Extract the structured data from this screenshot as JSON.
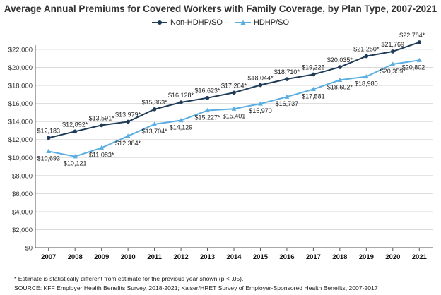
{
  "chart_data": {
    "type": "line",
    "title": "Average Annual Premiums for Covered Workers with Family Coverage, by Plan Type, 2007-2021",
    "x": [
      "2007",
      "2008",
      "2009",
      "2010",
      "2011",
      "2012",
      "2013",
      "2014",
      "2015",
      "2016",
      "2017",
      "2018",
      "2019",
      "2020",
      "2021"
    ],
    "ylim": [
      0,
      22000
    ],
    "ytick_step": 2000,
    "ytick_labels": [
      "$0",
      "$2,000",
      "$4,000",
      "$6,000",
      "$8,000",
      "$10,000",
      "$12,000",
      "$14,000",
      "$16,000",
      "$18,000",
      "$20,000",
      "$22,000"
    ],
    "grid": true,
    "legend_position": "top-center",
    "series": [
      {
        "name": "Non-HDHP/SO",
        "color": "#1f3b57",
        "marker": "circle",
        "values": [
          12183,
          12892,
          13591,
          13979,
          15363,
          16128,
          16623,
          17204,
          18044,
          18710,
          19225,
          20035,
          21250,
          21769,
          22784
        ],
        "labels": [
          "$12,183",
          "$12,892*",
          "$13,591*",
          "$13,979*",
          "$15,363*",
          "$16,128*",
          "$16,623*",
          "$17,204*",
          "$18,044*",
          "$18,710*",
          "$19,225",
          "$20,035*",
          "$21,250*",
          "$21,769",
          "$22,784*"
        ]
      },
      {
        "name": "HDHP/SO",
        "color": "#5aaee2",
        "marker": "triangle",
        "values": [
          10693,
          10121,
          11083,
          12384,
          13704,
          14129,
          15227,
          15401,
          15970,
          16737,
          17581,
          18602,
          18980,
          20359,
          20802
        ],
        "labels": [
          "$10,693",
          "$10,121",
          "$11,083*",
          "$12,384*",
          "$13,704*",
          "$14,129",
          "$15,227*",
          "$15,401",
          "$15,970",
          "$16,737",
          "$17,581",
          "$18,602*",
          "$18,980",
          "$20,359*",
          "$20,802"
        ]
      }
    ]
  },
  "footnotes": [
    "* Estimate is statistically different from estimate for the previous year shown (p < .05).",
    "SOURCE: KFF Employer Health Benefits Survey, 2018-2021; Kaiser/HRET Survey of Employer-Sponsored Health Benefits, 2007-2017"
  ]
}
